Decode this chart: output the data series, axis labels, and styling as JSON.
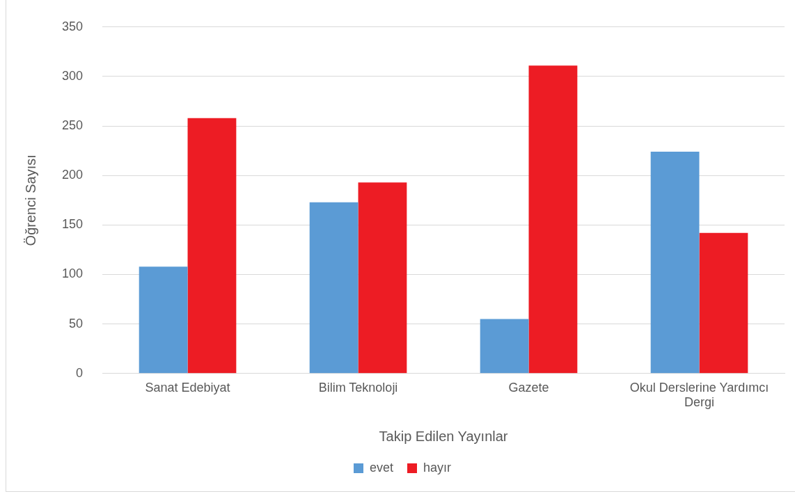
{
  "chart_data": {
    "type": "bar",
    "xlabel": "Takip Edilen Yayınlar",
    "ylabel": "Öğrenci Sayısı",
    "categories": [
      "Sanat Edebiyat",
      "Bilim Teknoloji",
      "Gazete",
      "Okul Derslerine Yardımcı Dergi"
    ],
    "series": [
      {
        "name": "evet",
        "color": "#5b9bd5",
        "values": [
          108,
          173,
          55,
          224
        ]
      },
      {
        "name": "hayır",
        "color": "#ed1c24",
        "values": [
          258,
          193,
          311,
          142
        ]
      }
    ],
    "ylim": [
      0,
      350
    ],
    "yticks": [
      0,
      50,
      100,
      150,
      200,
      250,
      300,
      350
    ],
    "grid": "y",
    "legend": "bottom"
  }
}
